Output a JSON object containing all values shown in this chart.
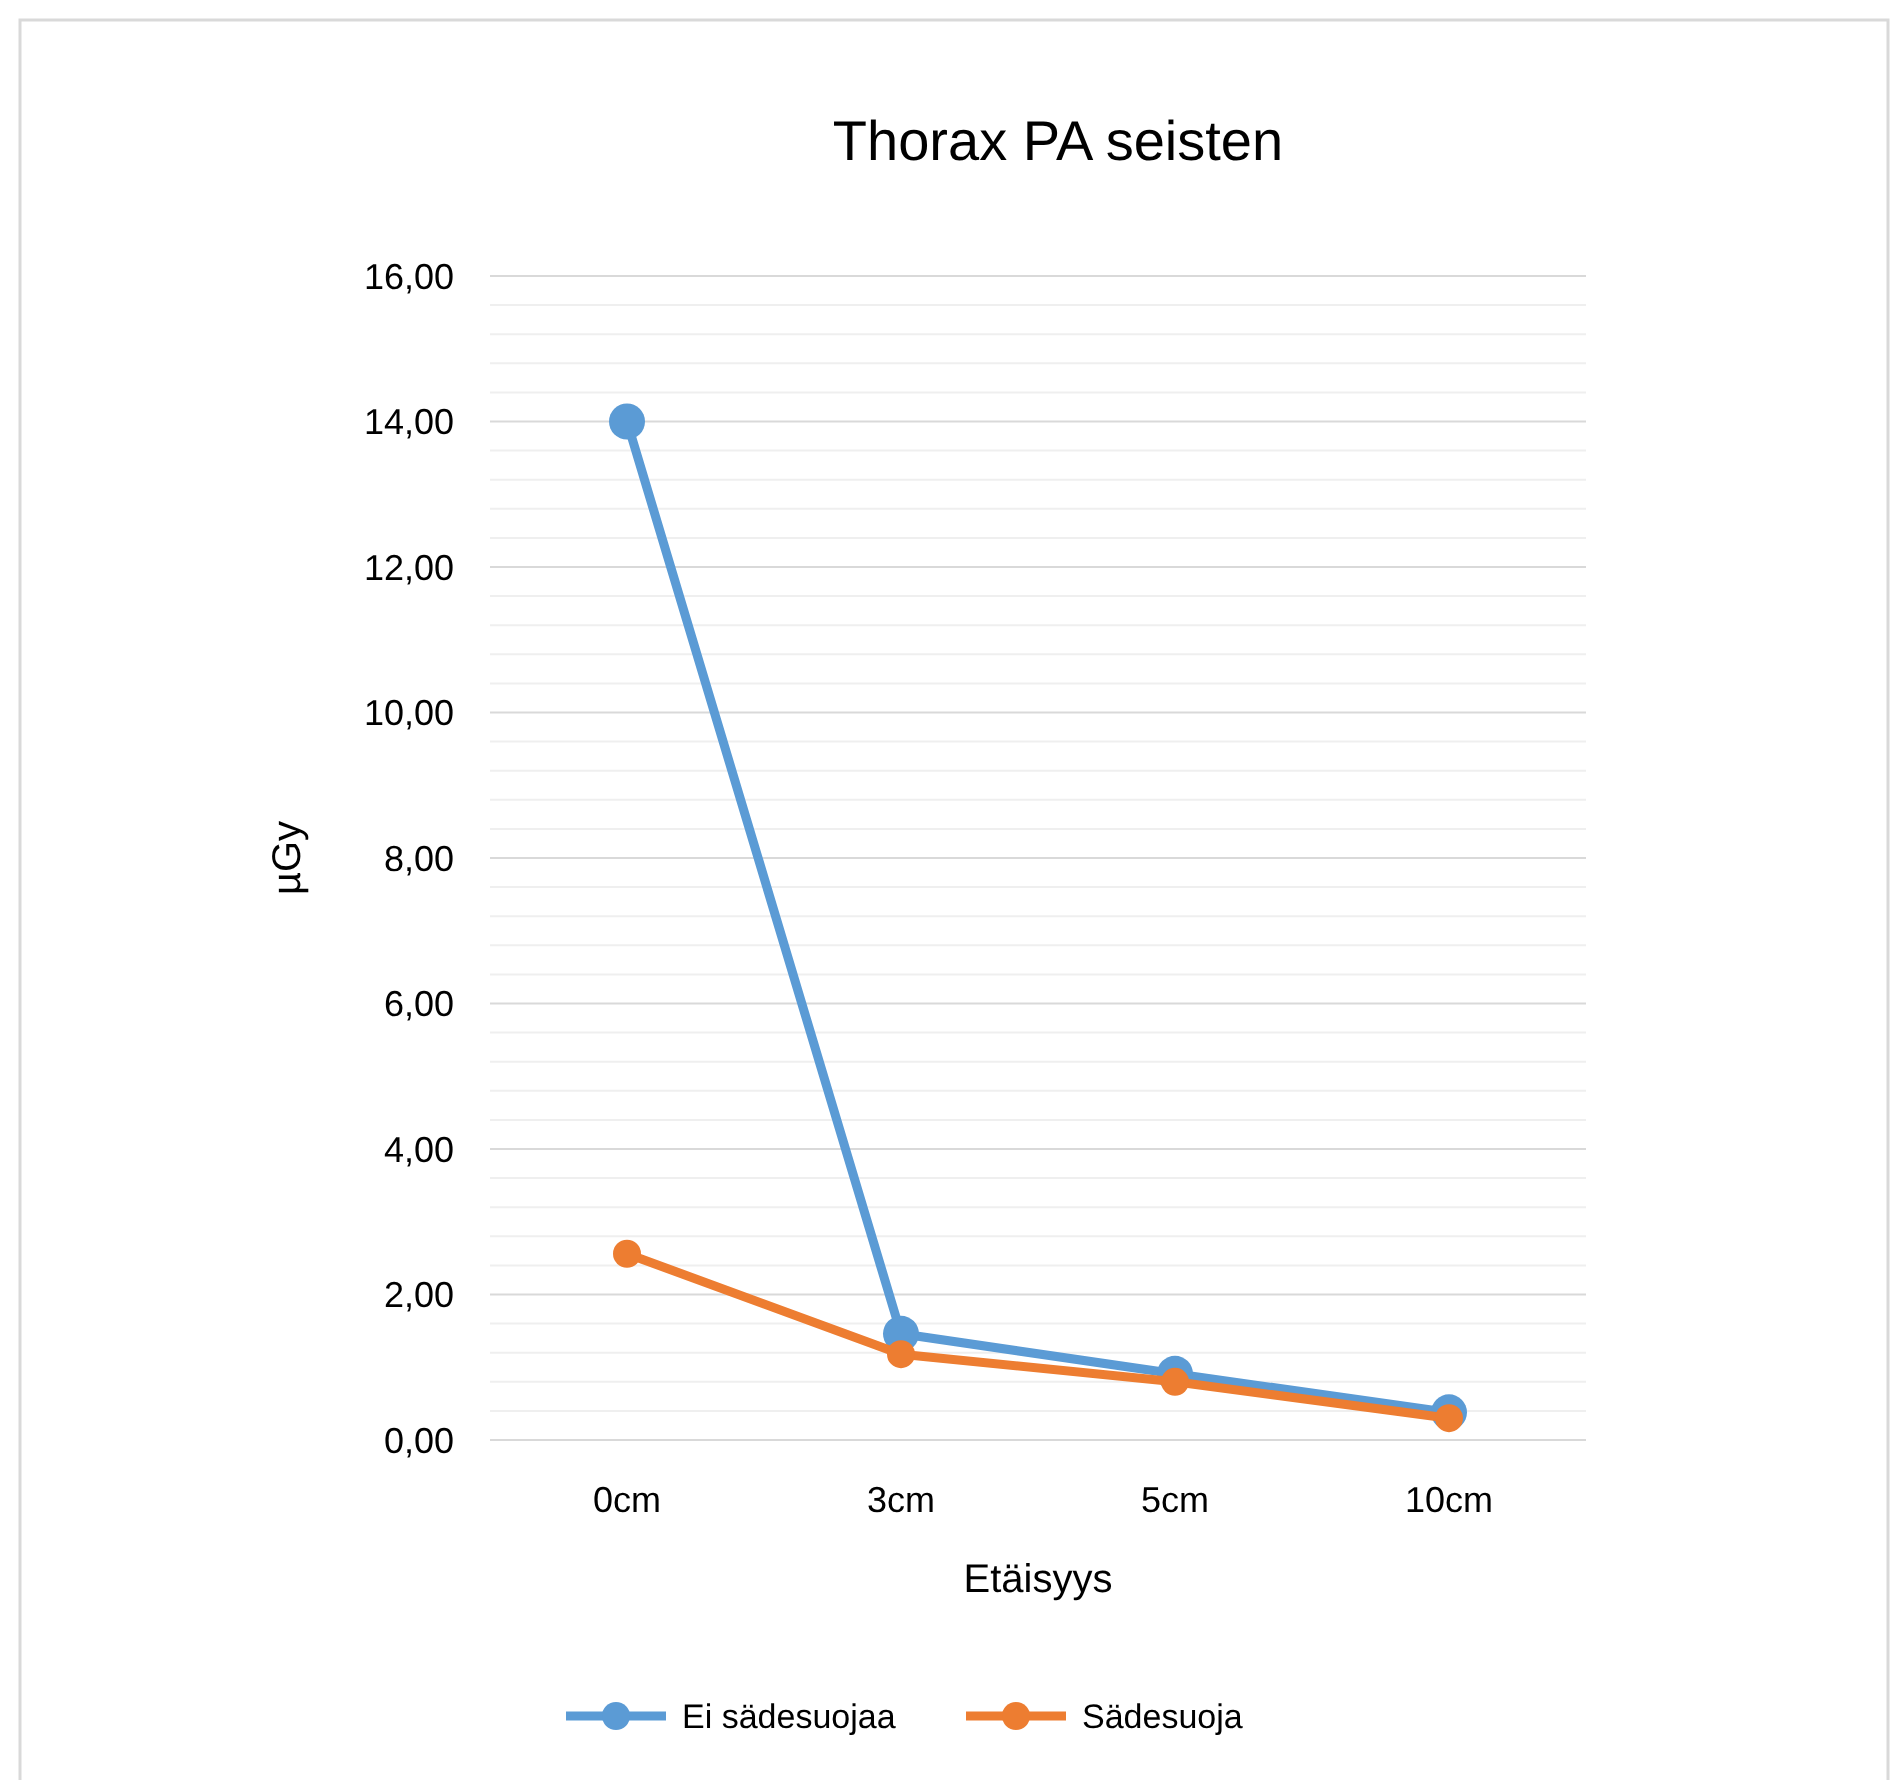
{
  "chart_data": {
    "type": "line",
    "title": "Thorax PA seisten",
    "xlabel": "Etäisyys",
    "ylabel": "µGy",
    "categories": [
      "0cm",
      "3cm",
      "5cm",
      "10cm"
    ],
    "series": [
      {
        "name": "Ei sädesuojaa",
        "color": "#5b9bd5",
        "values": [
          14.0,
          1.46,
          0.91,
          0.38
        ]
      },
      {
        "name": "Sädesuoja",
        "color": "#ed7d31",
        "values": [
          2.56,
          1.18,
          0.8,
          0.3
        ]
      }
    ],
    "ylim": [
      0,
      16
    ],
    "yticks": [
      {
        "value": 0,
        "label": "0,00"
      },
      {
        "value": 0.4,
        "label": null
      },
      {
        "value": 0.8,
        "label": null
      },
      {
        "value": 1.2,
        "label": null
      },
      {
        "value": 1.6,
        "label": null
      },
      {
        "value": 2,
        "label": "2,00"
      },
      {
        "value": 2.4,
        "label": null
      },
      {
        "value": 2.8,
        "label": null
      },
      {
        "value": 3.2,
        "label": null
      },
      {
        "value": 3.6,
        "label": null
      },
      {
        "value": 4,
        "label": "4,00"
      },
      {
        "value": 4.4,
        "label": null
      },
      {
        "value": 4.8,
        "label": null
      },
      {
        "value": 5.2,
        "label": null
      },
      {
        "value": 5.6,
        "label": null
      },
      {
        "value": 6,
        "label": "6,00"
      },
      {
        "value": 6.4,
        "label": null
      },
      {
        "value": 6.8,
        "label": null
      },
      {
        "value": 7.2,
        "label": null
      },
      {
        "value": 7.6,
        "label": null
      },
      {
        "value": 8,
        "label": "8,00"
      },
      {
        "value": 8.4,
        "label": null
      },
      {
        "value": 8.8,
        "label": null
      },
      {
        "value": 9.2,
        "label": null
      },
      {
        "value": 9.6,
        "label": null
      },
      {
        "value": 10,
        "label": "10,00"
      },
      {
        "value": 10.4,
        "label": null
      },
      {
        "value": 10.8,
        "label": null
      },
      {
        "value": 11.2,
        "label": null
      },
      {
        "value": 11.6,
        "label": null
      },
      {
        "value": 12,
        "label": "12,00"
      },
      {
        "value": 12.4,
        "label": null
      },
      {
        "value": 12.8,
        "label": null
      },
      {
        "value": 13.2,
        "label": null
      },
      {
        "value": 13.6,
        "label": null
      },
      {
        "value": 14,
        "label": "14,00"
      },
      {
        "value": 14.4,
        "label": null
      },
      {
        "value": 14.8,
        "label": null
      },
      {
        "value": 15.2,
        "label": null
      },
      {
        "value": 15.6,
        "label": null
      },
      {
        "value": 16,
        "label": "16,00"
      }
    ],
    "grid": "y",
    "legend": "bottom",
    "marker": "circle",
    "line_style": "solid"
  }
}
